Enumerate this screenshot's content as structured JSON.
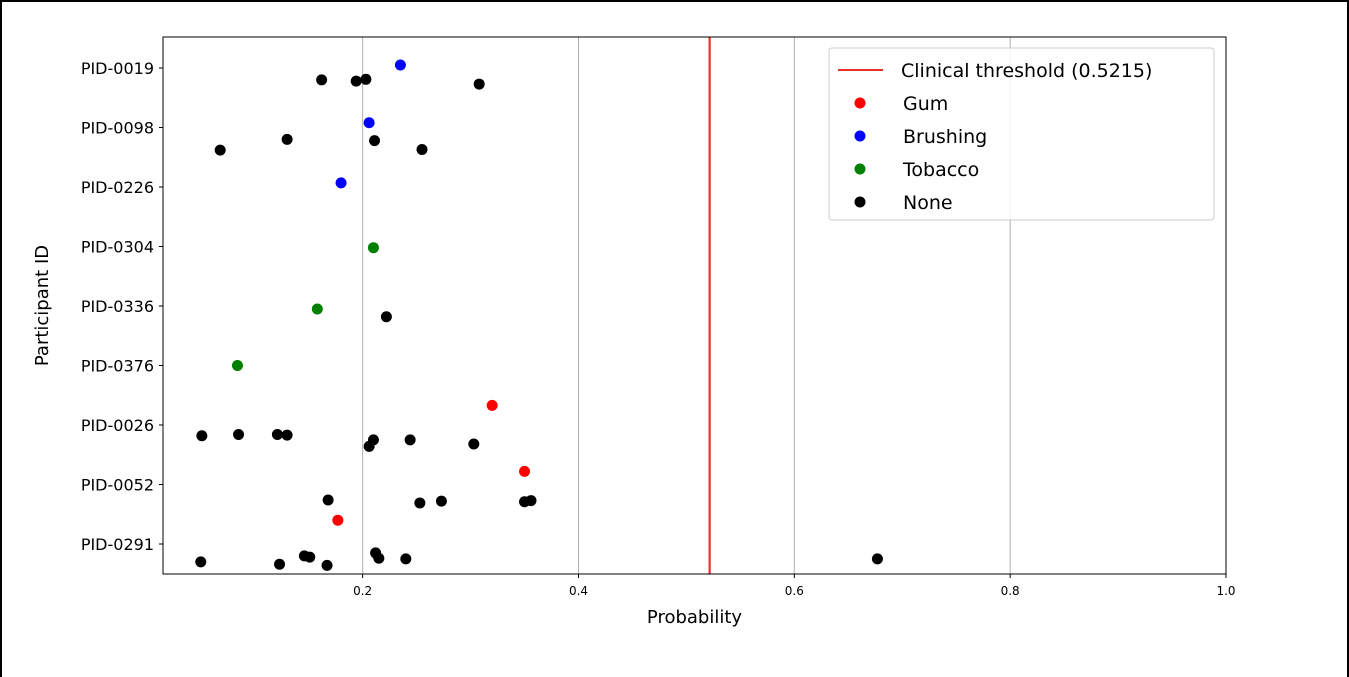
{
  "chart_data": {
    "type": "scatter",
    "title": "",
    "xlabel": "Probability",
    "ylabel": "Participant ID",
    "xlim": [
      0.015,
      1.0
    ],
    "x_ticks": [
      0.2,
      0.4,
      0.6,
      0.8,
      1.0
    ],
    "x_tick_labels": [
      "0.2",
      "0.4",
      "0.6",
      "0.8",
      "1.0"
    ],
    "categories": [
      "PID-0019",
      "PID-0098",
      "PID-0226",
      "PID-0304",
      "PID-0336",
      "PID-0376",
      "PID-0026",
      "PID-0052",
      "PID-0291"
    ],
    "grid": "vertical",
    "legend_position": "top-right",
    "threshold": {
      "label": "Clinical threshold (0.5215)",
      "value": 0.5215,
      "color": "#e8302a"
    },
    "series": [
      {
        "name": "Gum",
        "color": "#ff0000",
        "points": [
          {
            "x": 0.32,
            "y": 5.67
          },
          {
            "x": 0.35,
            "y": 6.78
          },
          {
            "x": 0.177,
            "y": 7.6
          }
        ]
      },
      {
        "name": "Brushing",
        "color": "#0000ff",
        "points": [
          {
            "x": 0.235,
            "y": -0.05
          },
          {
            "x": 0.206,
            "y": 0.92
          },
          {
            "x": 0.18,
            "y": 1.93
          }
        ]
      },
      {
        "name": "Tobacco",
        "color": "#008000",
        "points": [
          {
            "x": 0.21,
            "y": 3.02
          },
          {
            "x": 0.158,
            "y": 4.05
          },
          {
            "x": 0.084,
            "y": 5.0
          }
        ]
      },
      {
        "name": "None",
        "color": "#000000",
        "points": [
          {
            "x": 0.162,
            "y": 0.2
          },
          {
            "x": 0.194,
            "y": 0.22
          },
          {
            "x": 0.203,
            "y": 0.19
          },
          {
            "x": 0.308,
            "y": 0.27
          },
          {
            "x": 0.13,
            "y": 1.2
          },
          {
            "x": 0.211,
            "y": 1.22
          },
          {
            "x": 0.068,
            "y": 1.38
          },
          {
            "x": 0.255,
            "y": 1.37
          },
          {
            "x": 0.222,
            "y": 4.18
          },
          {
            "x": 0.051,
            "y": 6.18
          },
          {
            "x": 0.085,
            "y": 6.16
          },
          {
            "x": 0.121,
            "y": 6.16
          },
          {
            "x": 0.13,
            "y": 6.17
          },
          {
            "x": 0.21,
            "y": 6.25
          },
          {
            "x": 0.244,
            "y": 6.25
          },
          {
            "x": 0.206,
            "y": 6.36
          },
          {
            "x": 0.303,
            "y": 6.32
          },
          {
            "x": 0.168,
            "y": 7.26
          },
          {
            "x": 0.253,
            "y": 7.31
          },
          {
            "x": 0.273,
            "y": 7.28
          },
          {
            "x": 0.35,
            "y": 7.29
          },
          {
            "x": 0.356,
            "y": 7.27
          },
          {
            "x": 0.212,
            "y": 8.15
          },
          {
            "x": 0.146,
            "y": 8.2
          },
          {
            "x": 0.151,
            "y": 8.22
          },
          {
            "x": 0.215,
            "y": 8.24
          },
          {
            "x": 0.24,
            "y": 8.25
          },
          {
            "x": 0.677,
            "y": 8.25
          },
          {
            "x": 0.05,
            "y": 8.3
          },
          {
            "x": 0.123,
            "y": 8.34
          },
          {
            "x": 0.167,
            "y": 8.36
          }
        ]
      }
    ]
  }
}
